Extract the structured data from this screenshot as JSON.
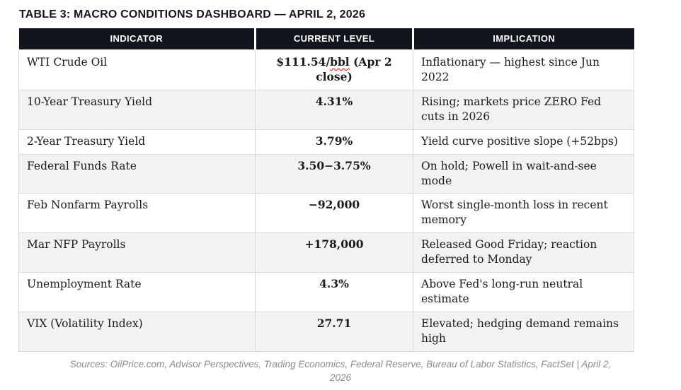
{
  "title": "TABLE 3: MACRO CONDITIONS DASHBOARD — APRIL 2, 2026",
  "colors": {
    "header_bg": "#12151d",
    "header_text": "#ffffff",
    "row_alt_bg": "#f2f2f2",
    "border": "#d8d8d8",
    "spellcheck_underline": "#e00000",
    "footer_text": "#8c8c8c"
  },
  "table": {
    "headers": [
      "INDICATOR",
      "CURRENT LEVEL",
      "IMPLICATION"
    ],
    "rows": [
      {
        "indicator": "WTI Crude Oil",
        "level_prefix": "$111.54/",
        "level_misspelled": "bbl",
        "level_suffix": " (Apr 2 close)",
        "implication": "Inflationary — highest since Jun 2022"
      },
      {
        "indicator": "10-Year Treasury Yield",
        "level": "4.31%",
        "implication": "Rising; markets price ZERO Fed cuts in 2026"
      },
      {
        "indicator": "2-Year Treasury Yield",
        "level": "3.79%",
        "implication": "Yield curve positive slope (+52bps)"
      },
      {
        "indicator": "Federal Funds Rate",
        "level": "3.50−3.75%",
        "implication": "On hold; Powell in wait-and-see mode"
      },
      {
        "indicator": "Feb Nonfarm Payrolls",
        "level": "−92,000",
        "implication": "Worst single-month loss in recent memory"
      },
      {
        "indicator": "Mar NFP Payrolls",
        "level": "+178,000",
        "implication": "Released Good Friday; reaction deferred to Monday"
      },
      {
        "indicator": "Unemployment Rate",
        "level": "4.3%",
        "implication": "Above Fed's long-run neutral estimate"
      },
      {
        "indicator": "VIX (Volatility Index)",
        "level": "27.71",
        "implication": "Elevated; hedging demand remains high"
      }
    ]
  },
  "footer": {
    "sources": "Sources: OilPrice.com, Advisor Perspectives, Trading Economics, Federal Reserve, Bureau of Labor Statistics, FactSet | April 2, 2026"
  }
}
